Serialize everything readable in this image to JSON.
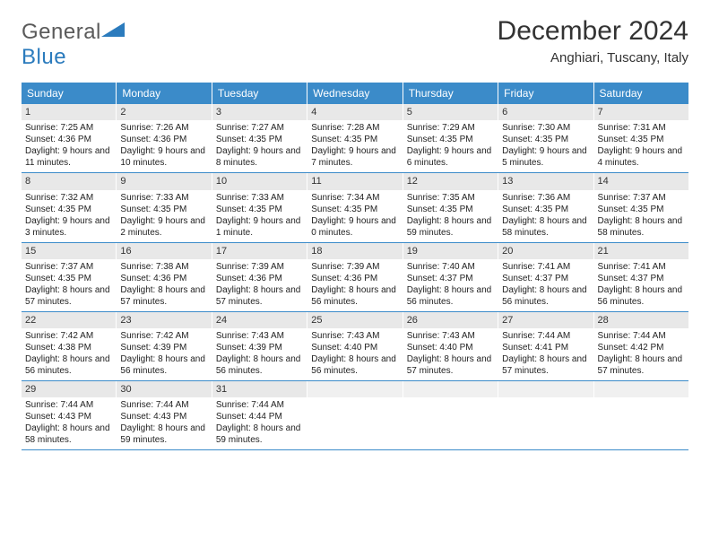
{
  "logo": {
    "word1": "General",
    "word2": "Blue"
  },
  "title": "December 2024",
  "location": "Anghiari, Tuscany, Italy",
  "colors": {
    "header_bg": "#3b8bc9",
    "header_text": "#ffffff",
    "daynum_bg": "#e8e8e8",
    "border": "#3b8bc9",
    "logo_gray": "#5a5a5a",
    "logo_blue": "#2b7bbd"
  },
  "day_headers": [
    "Sunday",
    "Monday",
    "Tuesday",
    "Wednesday",
    "Thursday",
    "Friday",
    "Saturday"
  ],
  "weeks": [
    [
      {
        "n": "1",
        "sr": "7:25 AM",
        "ss": "4:36 PM",
        "dl": "9 hours and 11 minutes."
      },
      {
        "n": "2",
        "sr": "7:26 AM",
        "ss": "4:36 PM",
        "dl": "9 hours and 10 minutes."
      },
      {
        "n": "3",
        "sr": "7:27 AM",
        "ss": "4:35 PM",
        "dl": "9 hours and 8 minutes."
      },
      {
        "n": "4",
        "sr": "7:28 AM",
        "ss": "4:35 PM",
        "dl": "9 hours and 7 minutes."
      },
      {
        "n": "5",
        "sr": "7:29 AM",
        "ss": "4:35 PM",
        "dl": "9 hours and 6 minutes."
      },
      {
        "n": "6",
        "sr": "7:30 AM",
        "ss": "4:35 PM",
        "dl": "9 hours and 5 minutes."
      },
      {
        "n": "7",
        "sr": "7:31 AM",
        "ss": "4:35 PM",
        "dl": "9 hours and 4 minutes."
      }
    ],
    [
      {
        "n": "8",
        "sr": "7:32 AM",
        "ss": "4:35 PM",
        "dl": "9 hours and 3 minutes."
      },
      {
        "n": "9",
        "sr": "7:33 AM",
        "ss": "4:35 PM",
        "dl": "9 hours and 2 minutes."
      },
      {
        "n": "10",
        "sr": "7:33 AM",
        "ss": "4:35 PM",
        "dl": "9 hours and 1 minute."
      },
      {
        "n": "11",
        "sr": "7:34 AM",
        "ss": "4:35 PM",
        "dl": "9 hours and 0 minutes."
      },
      {
        "n": "12",
        "sr": "7:35 AM",
        "ss": "4:35 PM",
        "dl": "8 hours and 59 minutes."
      },
      {
        "n": "13",
        "sr": "7:36 AM",
        "ss": "4:35 PM",
        "dl": "8 hours and 58 minutes."
      },
      {
        "n": "14",
        "sr": "7:37 AM",
        "ss": "4:35 PM",
        "dl": "8 hours and 58 minutes."
      }
    ],
    [
      {
        "n": "15",
        "sr": "7:37 AM",
        "ss": "4:35 PM",
        "dl": "8 hours and 57 minutes."
      },
      {
        "n": "16",
        "sr": "7:38 AM",
        "ss": "4:36 PM",
        "dl": "8 hours and 57 minutes."
      },
      {
        "n": "17",
        "sr": "7:39 AM",
        "ss": "4:36 PM",
        "dl": "8 hours and 57 minutes."
      },
      {
        "n": "18",
        "sr": "7:39 AM",
        "ss": "4:36 PM",
        "dl": "8 hours and 56 minutes."
      },
      {
        "n": "19",
        "sr": "7:40 AM",
        "ss": "4:37 PM",
        "dl": "8 hours and 56 minutes."
      },
      {
        "n": "20",
        "sr": "7:41 AM",
        "ss": "4:37 PM",
        "dl": "8 hours and 56 minutes."
      },
      {
        "n": "21",
        "sr": "7:41 AM",
        "ss": "4:37 PM",
        "dl": "8 hours and 56 minutes."
      }
    ],
    [
      {
        "n": "22",
        "sr": "7:42 AM",
        "ss": "4:38 PM",
        "dl": "8 hours and 56 minutes."
      },
      {
        "n": "23",
        "sr": "7:42 AM",
        "ss": "4:39 PM",
        "dl": "8 hours and 56 minutes."
      },
      {
        "n": "24",
        "sr": "7:43 AM",
        "ss": "4:39 PM",
        "dl": "8 hours and 56 minutes."
      },
      {
        "n": "25",
        "sr": "7:43 AM",
        "ss": "4:40 PM",
        "dl": "8 hours and 56 minutes."
      },
      {
        "n": "26",
        "sr": "7:43 AM",
        "ss": "4:40 PM",
        "dl": "8 hours and 57 minutes."
      },
      {
        "n": "27",
        "sr": "7:44 AM",
        "ss": "4:41 PM",
        "dl": "8 hours and 57 minutes."
      },
      {
        "n": "28",
        "sr": "7:44 AM",
        "ss": "4:42 PM",
        "dl": "8 hours and 57 minutes."
      }
    ],
    [
      {
        "n": "29",
        "sr": "7:44 AM",
        "ss": "4:43 PM",
        "dl": "8 hours and 58 minutes."
      },
      {
        "n": "30",
        "sr": "7:44 AM",
        "ss": "4:43 PM",
        "dl": "8 hours and 59 minutes."
      },
      {
        "n": "31",
        "sr": "7:44 AM",
        "ss": "4:44 PM",
        "dl": "8 hours and 59 minutes."
      },
      {
        "empty": true
      },
      {
        "empty": true
      },
      {
        "empty": true
      },
      {
        "empty": true
      }
    ]
  ],
  "labels": {
    "sunrise": "Sunrise:",
    "sunset": "Sunset:",
    "daylight": "Daylight:"
  }
}
